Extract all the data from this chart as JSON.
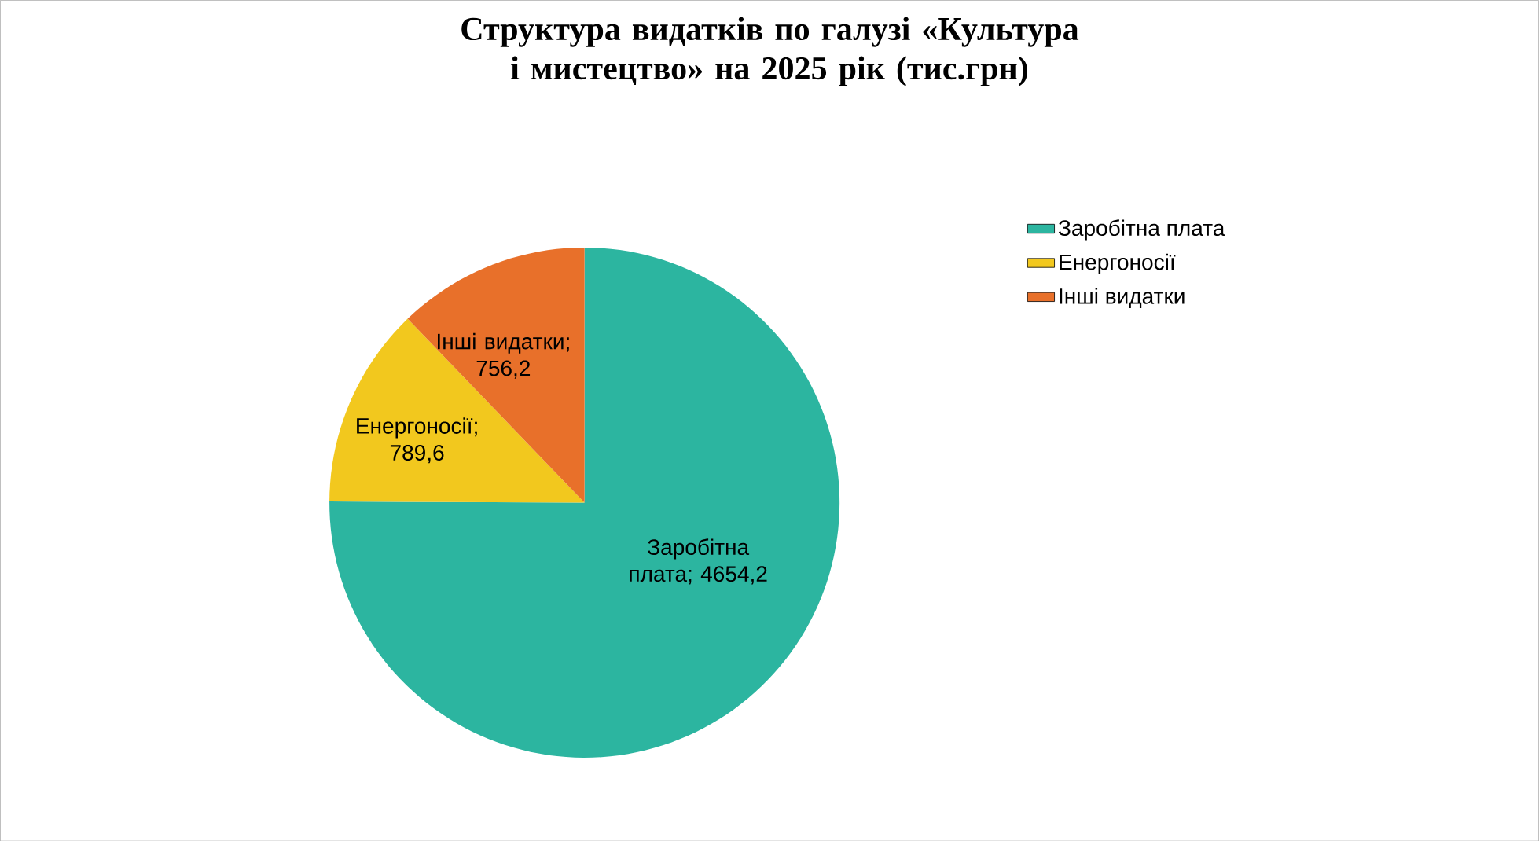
{
  "chart_data": {
    "type": "pie",
    "title": "Структура видатків по галузі «Культура і мистецтво» на 2025 рік (тис.грн)",
    "categories": [
      "Заробітна плата",
      "Енергоносії",
      "Інші видатки"
    ],
    "values": [
      4654.2,
      789.6,
      756.2
    ],
    "value_labels": [
      "Заробітна плата; 4654,2",
      "Енергоносії; 789,6",
      "Інші видатки; 756,2"
    ],
    "colors": [
      "#2cb5a0",
      "#f2c81e",
      "#e8702a"
    ],
    "legend": "right"
  }
}
